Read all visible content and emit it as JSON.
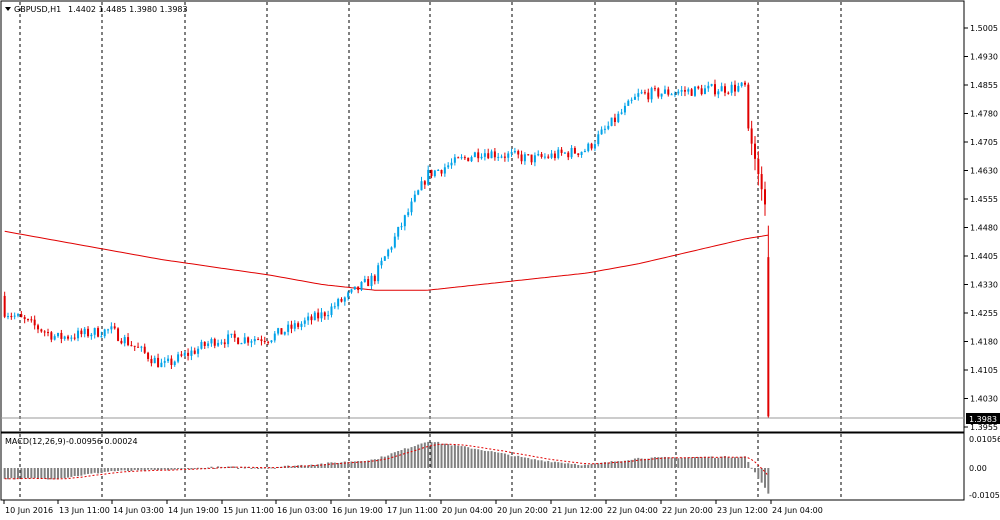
{
  "window": {
    "symbol_label": "GBPUSD,H1",
    "ohlc": "1.4402 1.4485 1.3980 1.3983",
    "dropdown_icon": "triangle-down-icon"
  },
  "price_axis": {
    "labels": [
      "1.5005",
      "1.4930",
      "1.4855",
      "1.4780",
      "1.4705",
      "1.4630",
      "1.4555",
      "1.4480",
      "1.4405",
      "1.4330",
      "1.4255",
      "1.4180",
      "1.4105",
      "1.4030",
      "1.3955"
    ],
    "current_price": "1.3983"
  },
  "macd_panel": {
    "label": "MACD(12,26,9)",
    "values": "-0.00956 0.00024",
    "axis_labels": [
      "0.01056",
      "0.00",
      "-0.01052"
    ]
  },
  "time_axis": {
    "labels": [
      "10 Jun 2016",
      "13 Jun 11:00",
      "14 Jun 03:00",
      "14 Jun 19:00",
      "15 Jun 11:00",
      "16 Jun 03:00",
      "16 Jun 19:00",
      "17 Jun 11:00",
      "20 Jun 04:00",
      "20 Jun 20:00",
      "21 Jun 12:00",
      "22 Jun 04:00",
      "22 Jun 20:00",
      "23 Jun 12:00",
      "24 Jun 04:00"
    ]
  },
  "colors": {
    "bull": "#00a2e8",
    "bear": "#e00000",
    "ma": "#e00000",
    "histogram": "#808080",
    "signal": "#e00000",
    "current_price_bg": "#000000"
  },
  "chart_data": {
    "type": "candlestick",
    "symbol": "GBPUSD",
    "timeframe": "H1",
    "price_range": [
      1.3955,
      1.504
    ],
    "macd_range": [
      -0.0108,
      0.0112
    ],
    "anchors": [
      {
        "time": "10 Jun 2016",
        "close": 1.426,
        "ma": 1.447,
        "macd": -0.004
      },
      {
        "time": "13 Jun 11:00",
        "close": 1.419,
        "ma": 1.4445,
        "macd": -0.004
      },
      {
        "time": "14 Jun 03:00",
        "close": 1.421,
        "ma": 1.442,
        "macd": -0.0012
      },
      {
        "time": "14 Jun 19:00",
        "close": 1.4115,
        "ma": 1.4395,
        "macd": -0.0008
      },
      {
        "time": "15 Jun 11:00",
        "close": 1.4185,
        "ma": 1.4375,
        "macd": 0.0003
      },
      {
        "time": "16 Jun 03:00",
        "close": 1.419,
        "ma": 1.4355,
        "macd": 0.0002
      },
      {
        "time": "16 Jun 19:00",
        "close": 1.425,
        "ma": 1.433,
        "macd": 0.0015
      },
      {
        "time": "17 Jun 11:00",
        "close": 1.435,
        "ma": 1.4315,
        "macd": 0.003
      },
      {
        "time": "20 Jun 04:00",
        "close": 1.462,
        "ma": 1.4315,
        "macd": 0.0095
      },
      {
        "time": "20 Jun 20:00",
        "close": 1.468,
        "ma": 1.433,
        "macd": 0.0065
      },
      {
        "time": "21 Jun 12:00",
        "close": 1.466,
        "ma": 1.4345,
        "macd": 0.003
      },
      {
        "time": "22 Jun 04:00",
        "close": 1.4685,
        "ma": 1.436,
        "macd": 0.001
      },
      {
        "time": "22 Jun 20:00",
        "close": 1.483,
        "ma": 1.4385,
        "macd": 0.0035
      },
      {
        "time": "23 Jun 12:00",
        "close": 1.485,
        "ma": 1.445,
        "macd": 0.004
      },
      {
        "time": "24 Jun 04:00",
        "close": 1.3983,
        "ma": 1.446,
        "macd": -0.0096
      }
    ],
    "last_bar": {
      "open": 1.4402,
      "high": 1.4485,
      "low": 1.398,
      "close": 1.3983
    }
  }
}
